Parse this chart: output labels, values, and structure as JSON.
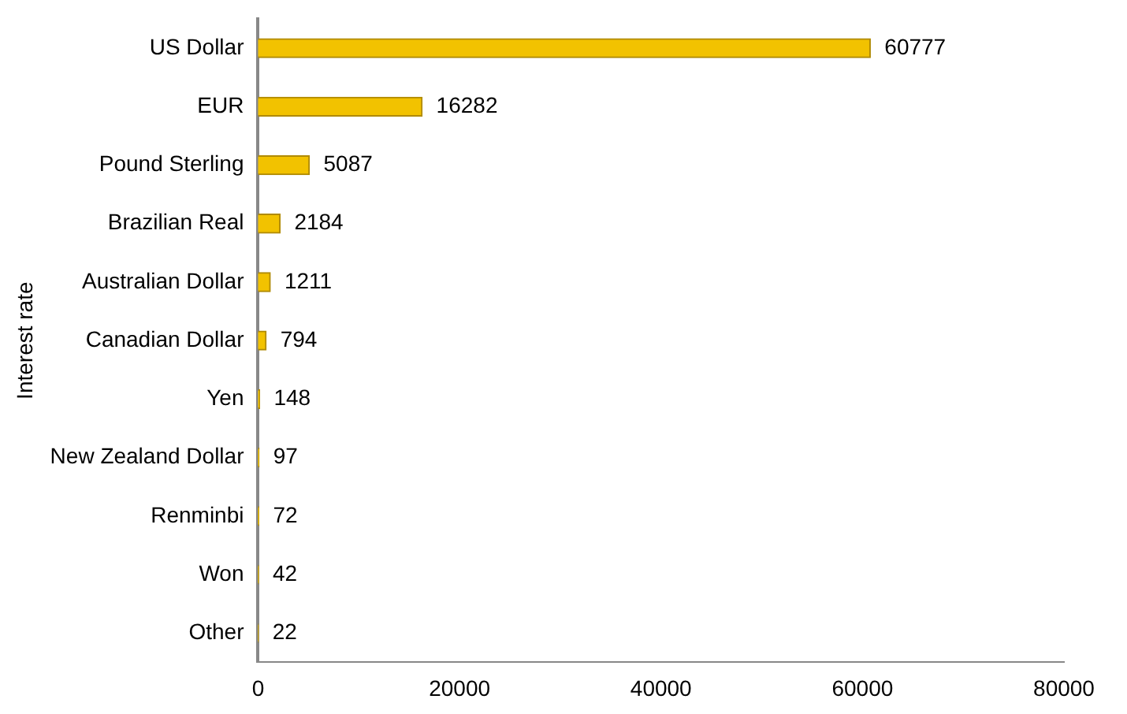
{
  "chart_data": {
    "type": "bar",
    "orientation": "horizontal",
    "ylabel": "Interest rate",
    "categories": [
      "US Dollar",
      "EUR",
      "Pound Sterling",
      "Brazilian Real",
      "Australian Dollar",
      "Canadian Dollar",
      "Yen",
      "New Zealand Dollar",
      "Renminbi",
      "Won",
      "Other"
    ],
    "values": [
      60777,
      16282,
      5087,
      2184,
      1211,
      794,
      148,
      97,
      72,
      42,
      22
    ],
    "color": "#f2c200",
    "xlim": [
      0,
      80000
    ],
    "xticks": [
      0,
      20000,
      40000,
      60000,
      80000
    ],
    "grid": false,
    "legend": false,
    "data_labels": true
  }
}
